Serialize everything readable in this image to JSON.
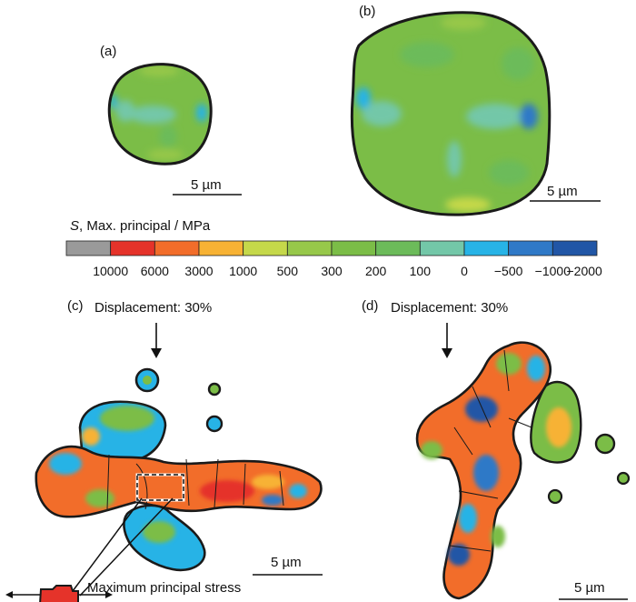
{
  "panels": {
    "a": {
      "label": "(a)",
      "scalebar": "5 µm"
    },
    "b": {
      "label": "(b)",
      "scalebar": "5 µm"
    },
    "c": {
      "label": "(c)",
      "title": "Displacement: 30%",
      "scalebar": "5 µm",
      "inset_caption": "Maximum principal stress"
    },
    "d": {
      "label": "(d)",
      "title": "Displacement: 30%",
      "scalebar": "5 µm"
    }
  },
  "colorbar": {
    "symbol": "S",
    "title": ", Max. principal / MPa",
    "ticks": [
      "10000",
      "6000",
      "3000",
      "1000",
      "500",
      "300",
      "200",
      "100",
      "0",
      "−500",
      "−1000",
      "−2000"
    ],
    "colors": [
      "#9a9a9a",
      "#e5332a",
      "#f26d2a",
      "#f7b234",
      "#c5d84a",
      "#97c84a",
      "#7bbd47",
      "#6cbb5a",
      "#73c7a8",
      "#27b3e6",
      "#2f79c7",
      "#2156a6"
    ]
  },
  "colors": {
    "outline": "#1a1a1a",
    "green": "#7bbd47",
    "light_green": "#97c84a",
    "teal": "#73c7a8",
    "cyan": "#27b3e6",
    "blue": "#2f79c7",
    "red": "#e5332a",
    "orange": "#f26d2a",
    "yellow": "#f7b234"
  }
}
